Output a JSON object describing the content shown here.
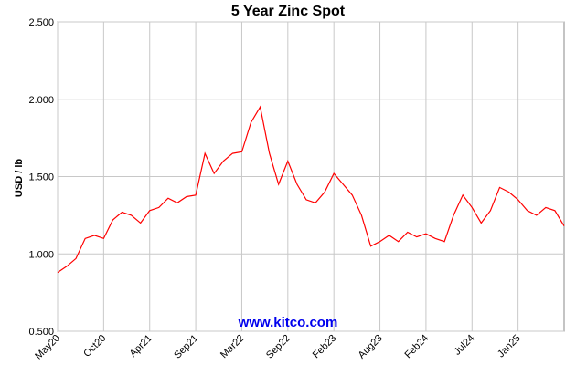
{
  "chart_data": {
    "type": "line",
    "title": "5 Year Zinc Spot",
    "y_label": "USD / lb",
    "watermark": "www.kitco.com",
    "categories": [
      "May20",
      null,
      null,
      null,
      null,
      "Oct20",
      null,
      null,
      null,
      null,
      "Apr21",
      null,
      null,
      null,
      null,
      "Sep21",
      null,
      null,
      null,
      null,
      "Mar22",
      null,
      null,
      null,
      null,
      "Sep22",
      null,
      null,
      null,
      null,
      "Feb23",
      null,
      null,
      null,
      null,
      "Aug23",
      null,
      null,
      null,
      null,
      "Feb24",
      null,
      null,
      null,
      null,
      "Jul24",
      null,
      null,
      null,
      null,
      "Jan25",
      null,
      null,
      null,
      null,
      null
    ],
    "values": [
      0.88,
      0.92,
      0.97,
      1.1,
      1.12,
      1.1,
      1.22,
      1.27,
      1.25,
      1.2,
      1.28,
      1.3,
      1.36,
      1.33,
      1.37,
      1.38,
      1.65,
      1.52,
      1.6,
      1.65,
      1.66,
      1.85,
      1.95,
      1.65,
      1.45,
      1.6,
      1.45,
      1.35,
      1.33,
      1.4,
      1.52,
      1.45,
      1.38,
      1.25,
      1.05,
      1.08,
      1.12,
      1.08,
      1.14,
      1.11,
      1.13,
      1.1,
      1.08,
      1.25,
      1.38,
      1.3,
      1.2,
      1.28,
      1.43,
      1.4,
      1.35,
      1.28,
      1.25,
      1.3,
      1.28,
      1.18
    ],
    "color": "#ff0000",
    "ylim": [
      0.5,
      2.5
    ],
    "yticks": [
      {
        "value": 0.5,
        "label": "0.500"
      },
      {
        "value": 1.0,
        "label": "1.000"
      },
      {
        "value": 1.5,
        "label": "1.500"
      },
      {
        "value": 2.0,
        "label": "2.000"
      },
      {
        "value": 2.5,
        "label": "2.500"
      }
    ],
    "grid": true
  }
}
